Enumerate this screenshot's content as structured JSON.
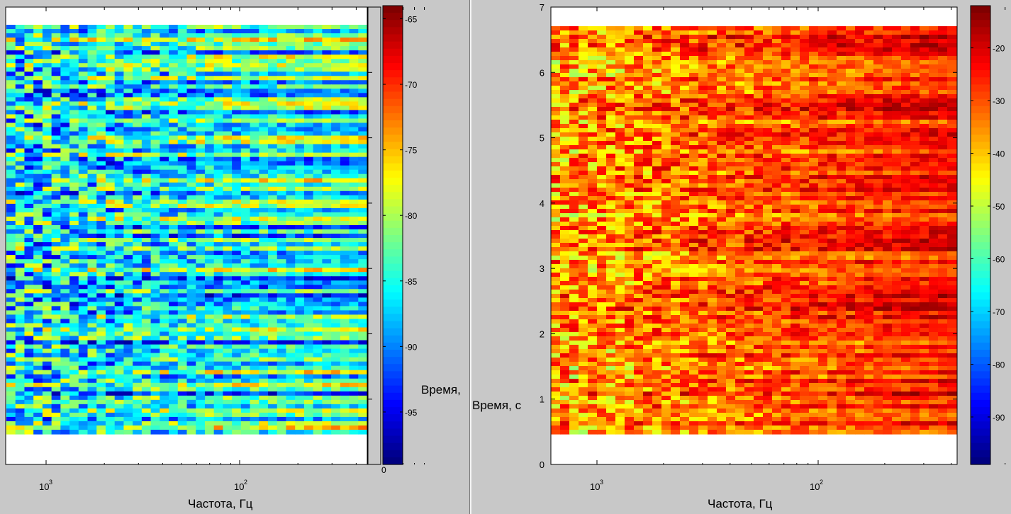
{
  "chart_data": [
    {
      "type": "heatmap",
      "panel": "left",
      "xlabel": "Частота, Гц",
      "ylabel": "Время,",
      "x_scale": "log",
      "x_reversed": true,
      "x_tick_labels": [
        "10^3",
        "10^2"
      ],
      "colorbar": {
        "colormap": "jet",
        "range": [
          -99,
          -64
        ],
        "ticks": [
          -65,
          -70,
          -75,
          -80,
          -85,
          -90,
          -95
        ],
        "axis_ticks": [
          0
        ]
      },
      "description_pattern": "noisy blue/cyan field at high frequency, horizontal streaks at low frequency"
    },
    {
      "type": "heatmap",
      "panel": "right",
      "xlabel": "Частота, Гц",
      "ylabel": "Время, с",
      "x_scale": "log",
      "x_reversed": true,
      "x_tick_labels": [
        "10^3",
        "10^2"
      ],
      "ylim": [
        0,
        7
      ],
      "y_ticks": [
        0,
        1,
        2,
        3,
        4,
        5,
        6,
        7
      ],
      "colorbar": {
        "colormap": "jet",
        "range": [
          -99,
          -12
        ],
        "ticks": [
          -20,
          -30,
          -40,
          -50,
          -60,
          -70,
          -80,
          -90
        ]
      }
    }
  ],
  "labels": {
    "left_xlabel": "Частота, Гц",
    "right_xlabel": "Частота, Гц",
    "left_ylabel": "Время,",
    "right_ylabel": "Время, с",
    "tick_base": "10",
    "exp3": "3",
    "exp2": "2",
    "zero": "0"
  }
}
